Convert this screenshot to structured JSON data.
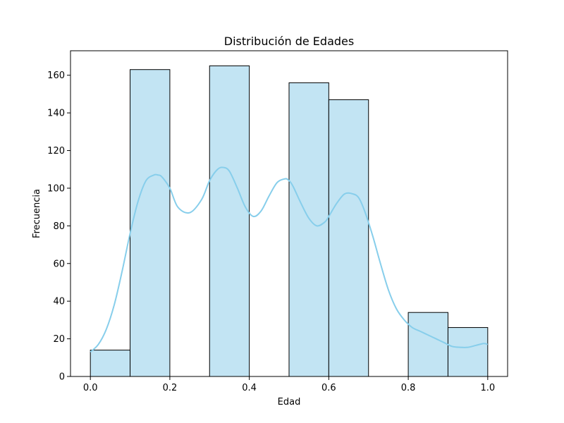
{
  "chart_data": {
    "type": "bar",
    "title": "Distribución de Edades",
    "xlabel": "Edad",
    "ylabel": "Frecuencia",
    "xlim": [
      -0.05,
      1.05
    ],
    "ylim": [
      0,
      173
    ],
    "xticks": [
      0.0,
      0.2,
      0.4,
      0.6,
      0.8,
      1.0
    ],
    "xtick_labels": [
      "0.0",
      "0.2",
      "0.4",
      "0.6",
      "0.8",
      "1.0"
    ],
    "yticks": [
      0,
      20,
      40,
      60,
      80,
      100,
      120,
      140,
      160
    ],
    "ytick_labels": [
      "0",
      "20",
      "40",
      "60",
      "80",
      "100",
      "120",
      "140",
      "160"
    ],
    "bins": [
      {
        "x0": 0.0,
        "x1": 0.1,
        "value": 14
      },
      {
        "x0": 0.1,
        "x1": 0.2,
        "value": 163
      },
      {
        "x0": 0.2,
        "x1": 0.3,
        "value": 0
      },
      {
        "x0": 0.3,
        "x1": 0.4,
        "value": 165
      },
      {
        "x0": 0.4,
        "x1": 0.5,
        "value": 0
      },
      {
        "x0": 0.5,
        "x1": 0.6,
        "value": 156
      },
      {
        "x0": 0.6,
        "x1": 0.7,
        "value": 147
      },
      {
        "x0": 0.7,
        "x1": 0.8,
        "value": 0
      },
      {
        "x0": 0.8,
        "x1": 0.9,
        "value": 34
      },
      {
        "x0": 0.9,
        "x1": 1.0,
        "value": 26
      }
    ],
    "kde": {
      "x": [
        0.0,
        0.02,
        0.04,
        0.06,
        0.08,
        0.1,
        0.12,
        0.14,
        0.16,
        0.17,
        0.18,
        0.2,
        0.22,
        0.25,
        0.28,
        0.3,
        0.32,
        0.335,
        0.35,
        0.37,
        0.39,
        0.41,
        0.43,
        0.45,
        0.47,
        0.49,
        0.5,
        0.51,
        0.53,
        0.55,
        0.57,
        0.59,
        0.6,
        0.62,
        0.64,
        0.66,
        0.675,
        0.69,
        0.71,
        0.73,
        0.75,
        0.77,
        0.79,
        0.81,
        0.83,
        0.85,
        0.87,
        0.89,
        0.91,
        0.93,
        0.95,
        0.97,
        0.99,
        1.0
      ],
      "y": [
        13,
        17,
        25,
        38,
        56,
        76,
        93,
        104,
        107,
        107,
        106,
        100,
        90,
        87,
        94,
        104,
        110,
        111,
        109,
        100,
        90,
        85,
        88,
        96,
        103,
        105,
        104,
        101,
        92,
        84,
        80,
        82,
        85,
        92,
        97,
        97,
        95,
        88,
        75,
        60,
        46,
        36,
        30,
        26,
        24,
        22,
        20,
        18,
        16,
        15.5,
        15.5,
        16.5,
        17.5,
        17
      ]
    },
    "colors": {
      "bar_fill": "#c2e4f3",
      "bar_edge": "#000000",
      "kde_line": "#87ceeb"
    },
    "grid": false,
    "legend": "none"
  }
}
